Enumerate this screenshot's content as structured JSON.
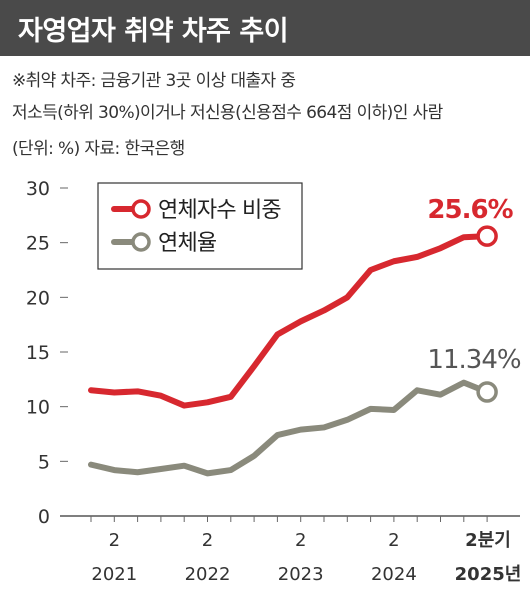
{
  "title": "자영업자 취약 차주 추이",
  "notes": {
    "line1": "※취약 차주: 금융기관 3곳 이상 대출자 중",
    "line2": "저소득(하위 30%)이거나 저신용(신용점수 664점 이하)인 사람",
    "line3": "(단위: %)  자료: 한국은행"
  },
  "colors": {
    "series1": "#d7282f",
    "series2": "#8a8a7c",
    "title_bg": "#4a4a4a"
  },
  "chart_data": {
    "type": "line",
    "ylim": [
      0,
      30
    ],
    "yticks": [
      "0",
      "5",
      "10",
      "15",
      "20",
      "25",
      "30"
    ],
    "xtick_labels": [
      {
        "top": "2",
        "bottom": "2021"
      },
      {
        "top": "2",
        "bottom": "2022"
      },
      {
        "top": "2",
        "bottom": "2023"
      },
      {
        "top": "2",
        "bottom": "2024"
      },
      {
        "top": "2분기",
        "bottom": "2025년"
      }
    ],
    "x": [
      "2021Q1",
      "2021Q2",
      "2021Q3",
      "2021Q4",
      "2022Q1",
      "2022Q2",
      "2022Q3",
      "2022Q4",
      "2023Q1",
      "2023Q2",
      "2023Q3",
      "2023Q4",
      "2024Q1",
      "2024Q2",
      "2024Q3",
      "2024Q4",
      "2025Q1",
      "2025Q2"
    ],
    "legend": [
      "연체자수 비중",
      "연체율"
    ],
    "series": [
      {
        "name": "연체자수 비중",
        "values": [
          11.5,
          11.3,
          11.4,
          11.0,
          10.1,
          10.4,
          10.9,
          13.7,
          16.6,
          17.8,
          18.8,
          20.0,
          22.5,
          23.3,
          23.7,
          24.5,
          25.5,
          25.6
        ]
      },
      {
        "name": "연체율",
        "values": [
          4.7,
          4.2,
          4.0,
          4.3,
          4.6,
          3.9,
          4.2,
          5.5,
          7.4,
          7.9,
          8.1,
          8.8,
          9.8,
          9.7,
          11.5,
          11.1,
          12.2,
          11.34
        ]
      }
    ],
    "end_labels": [
      "25.6%",
      "11.34%"
    ]
  }
}
